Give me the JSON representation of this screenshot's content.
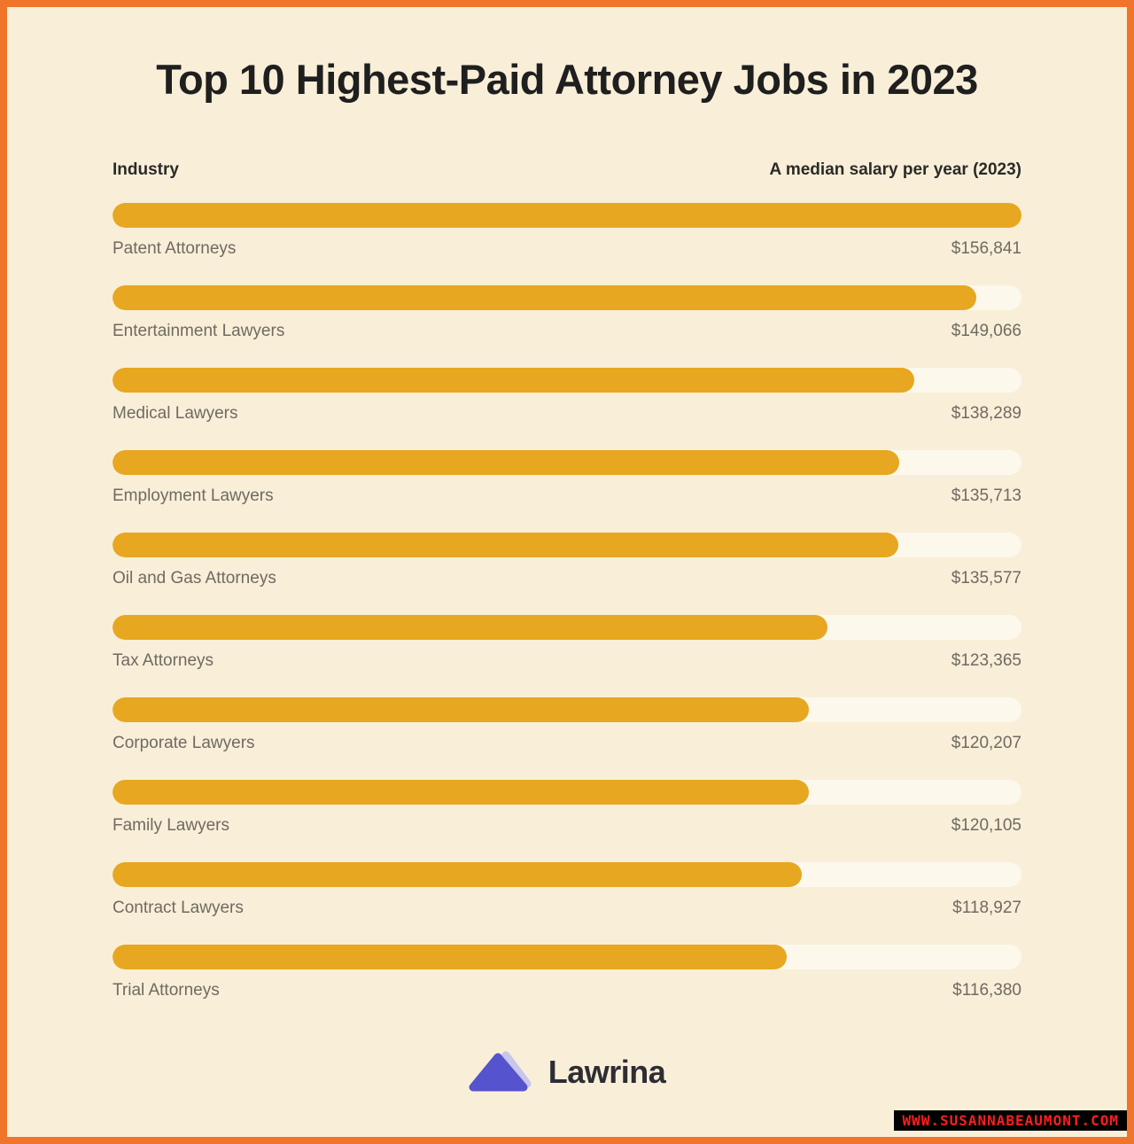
{
  "title": "Top 10 Highest-Paid Attorney Jobs in 2023",
  "table_header": {
    "industry": "Industry",
    "salary": "A median salary per year (2023)"
  },
  "chart_data": {
    "type": "bar",
    "orientation": "horizontal",
    "title": "Top 10 Highest-Paid Attorney Jobs in 2023",
    "xlabel": "A median salary per year (2023)",
    "ylabel": "Industry",
    "xlim": [
      0,
      156841
    ],
    "grid": false,
    "categories": [
      "Patent Attorneys",
      "Entertainment Lawyers",
      "Medical Lawyers",
      "Employment Lawyers",
      "Oil and Gas Attorneys",
      "Tax Attorneys",
      "Corporate Lawyers",
      "Family Lawyers",
      "Contract Lawyers",
      "Trial Attorneys"
    ],
    "values": [
      156841,
      149066,
      138289,
      135713,
      135577,
      123365,
      120207,
      120105,
      118927,
      116380
    ],
    "value_labels": [
      "$156,841",
      "$149,066",
      "$138,289",
      "$135,713",
      "$135,577",
      "$123,365",
      "$120,207",
      "$120,105",
      "$118,927",
      "$116,380"
    ]
  },
  "footer": {
    "brand": "Lawrina",
    "logo_icon": "triangle-logo-icon"
  },
  "watermark": {
    "text": "WWW.SUSANNABEAUMONT.COM"
  },
  "colors": {
    "border": "#F0752B",
    "background": "#F9EFD8",
    "bar": "#E8A720",
    "bar_track": "#FCF8EC",
    "title_text": "#1F1F1F",
    "label_text": "#6F6A62",
    "logo_triangle": "#5653CE",
    "logo_triangle_shadow": "#C9C5EC",
    "watermark_bg": "#000000",
    "watermark_text": "#FF1E1E"
  }
}
